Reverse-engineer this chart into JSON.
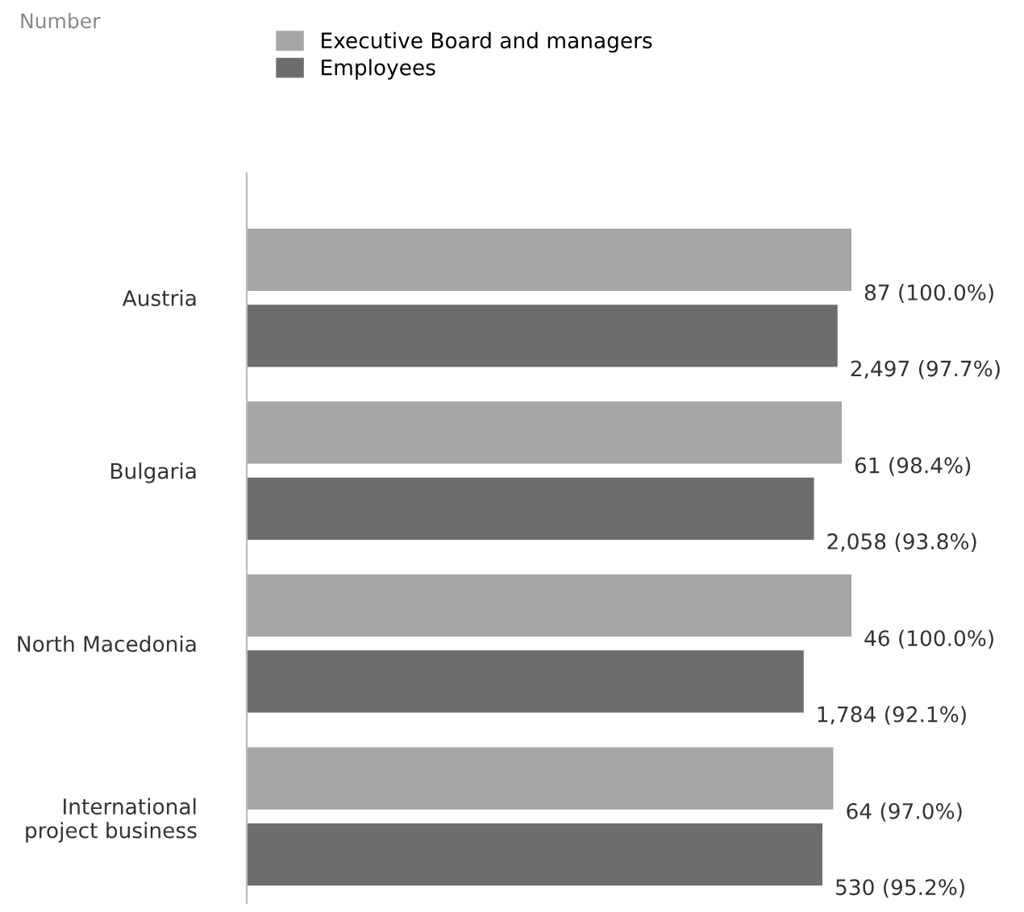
{
  "chart_data": {
    "type": "bar",
    "orientation": "horizontal",
    "xlim": [
      0,
      100
    ],
    "tick_labels": false,
    "title": "Number",
    "categories": [
      "Austria",
      "Bulgaria",
      "North Macedonia",
      "International\nproject business"
    ],
    "series": [
      {
        "name": "Executive Board and managers",
        "color": "#a6a6a6",
        "values": [
          100.0,
          98.4,
          100.0,
          97.0
        ],
        "value_labels": [
          "87 (100.0%)",
          "61 (98.4%)",
          "46 (100.0%)",
          "64 (97.0%)"
        ]
      },
      {
        "name": "Employees",
        "color": "#6d6d6d",
        "values": [
          97.7,
          93.8,
          92.1,
          95.2
        ],
        "value_labels": [
          "2,497 (97.7%)",
          "2,058 (93.8%)",
          "1,784 (92.1%)",
          "530 (95.2%)"
        ]
      }
    ],
    "legend": "top",
    "grid": false
  }
}
